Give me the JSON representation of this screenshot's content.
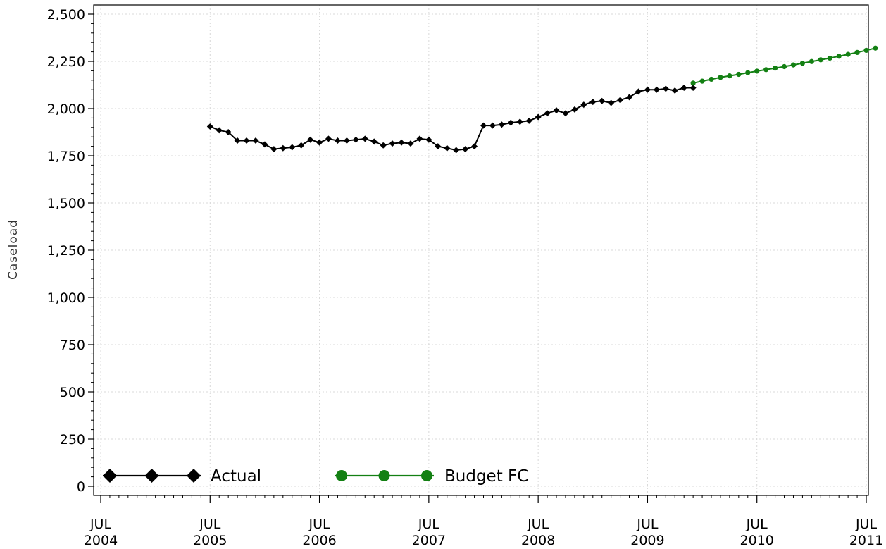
{
  "chart_data": {
    "type": "line",
    "title": "",
    "xlabel": "",
    "ylabel": "Caseload",
    "ylim": [
      0,
      2500
    ],
    "yticks": [
      0,
      250,
      500,
      750,
      1000,
      1250,
      1500,
      1750,
      2000,
      2250,
      2500
    ],
    "ytick_labels": [
      "0",
      "250",
      "500",
      "750",
      "1,000",
      "1,250",
      "1,500",
      "1,750",
      "2,000",
      "2,250",
      "2,500"
    ],
    "xlim": [
      "2004-07",
      "2011-07"
    ],
    "xticks": [
      {
        "date": "2004-07",
        "month": "JUL",
        "year": "2004"
      },
      {
        "date": "2005-07",
        "month": "JUL",
        "year": "2005"
      },
      {
        "date": "2006-07",
        "month": "JUL",
        "year": "2006"
      },
      {
        "date": "2007-07",
        "month": "JUL",
        "year": "2007"
      },
      {
        "date": "2008-07",
        "month": "JUL",
        "year": "2008"
      },
      {
        "date": "2009-07",
        "month": "JUL",
        "year": "2009"
      },
      {
        "date": "2010-07",
        "month": "JUL",
        "year": "2010"
      },
      {
        "date": "2011-07",
        "month": "JUL",
        "year": "2011"
      }
    ],
    "grid": true,
    "legend": {
      "placement": "bottom-left"
    },
    "series": [
      {
        "name": "Actual",
        "color": "#000000",
        "marker": "diamond",
        "points": [
          [
            "2005-07",
            1905
          ],
          [
            "2005-08",
            1885
          ],
          [
            "2005-09",
            1875
          ],
          [
            "2005-10",
            1830
          ],
          [
            "2005-11",
            1830
          ],
          [
            "2005-12",
            1830
          ],
          [
            "2006-01",
            1810
          ],
          [
            "2006-02",
            1785
          ],
          [
            "2006-03",
            1790
          ],
          [
            "2006-04",
            1795
          ],
          [
            "2006-05",
            1805
          ],
          [
            "2006-06",
            1835
          ],
          [
            "2006-07",
            1820
          ],
          [
            "2006-08",
            1840
          ],
          [
            "2006-09",
            1830
          ],
          [
            "2006-10",
            1830
          ],
          [
            "2006-11",
            1835
          ],
          [
            "2006-12",
            1840
          ],
          [
            "2007-01",
            1825
          ],
          [
            "2007-02",
            1805
          ],
          [
            "2007-03",
            1815
          ],
          [
            "2007-04",
            1820
          ],
          [
            "2007-05",
            1815
          ],
          [
            "2007-06",
            1840
          ],
          [
            "2007-07",
            1835
          ],
          [
            "2007-08",
            1800
          ],
          [
            "2007-09",
            1790
          ],
          [
            "2007-10",
            1780
          ],
          [
            "2007-11",
            1785
          ],
          [
            "2007-12",
            1800
          ],
          [
            "2008-01",
            1910
          ],
          [
            "2008-02",
            1910
          ],
          [
            "2008-03",
            1915
          ],
          [
            "2008-04",
            1925
          ],
          [
            "2008-05",
            1930
          ],
          [
            "2008-06",
            1935
          ],
          [
            "2008-07",
            1955
          ],
          [
            "2008-08",
            1975
          ],
          [
            "2008-09",
            1990
          ],
          [
            "2008-10",
            1975
          ],
          [
            "2008-11",
            1995
          ],
          [
            "2008-12",
            2020
          ],
          [
            "2009-01",
            2035
          ],
          [
            "2009-02",
            2040
          ],
          [
            "2009-03",
            2030
          ],
          [
            "2009-04",
            2045
          ],
          [
            "2009-05",
            2060
          ],
          [
            "2009-06",
            2090
          ],
          [
            "2009-07",
            2100
          ],
          [
            "2009-08",
            2100
          ],
          [
            "2009-09",
            2105
          ],
          [
            "2009-10",
            2095
          ],
          [
            "2009-11",
            2110
          ],
          [
            "2009-12",
            2110
          ]
        ]
      },
      {
        "name": "Budget FC",
        "color": "#138013",
        "marker": "circle",
        "points": [
          [
            "2009-12",
            2135
          ],
          [
            "2010-01",
            2145
          ],
          [
            "2010-02",
            2155
          ],
          [
            "2010-03",
            2165
          ],
          [
            "2010-04",
            2173
          ],
          [
            "2010-05",
            2181
          ],
          [
            "2010-06",
            2190
          ],
          [
            "2010-07",
            2198
          ],
          [
            "2010-08",
            2206
          ],
          [
            "2010-09",
            2214
          ],
          [
            "2010-10",
            2222
          ],
          [
            "2010-11",
            2231
          ],
          [
            "2010-12",
            2240
          ],
          [
            "2011-01",
            2249
          ],
          [
            "2011-02",
            2258
          ],
          [
            "2011-03",
            2267
          ],
          [
            "2011-04",
            2277
          ],
          [
            "2011-05",
            2287
          ],
          [
            "2011-06",
            2297
          ],
          [
            "2011-07",
            2308
          ],
          [
            "2011-08",
            2320
          ]
        ]
      }
    ]
  }
}
